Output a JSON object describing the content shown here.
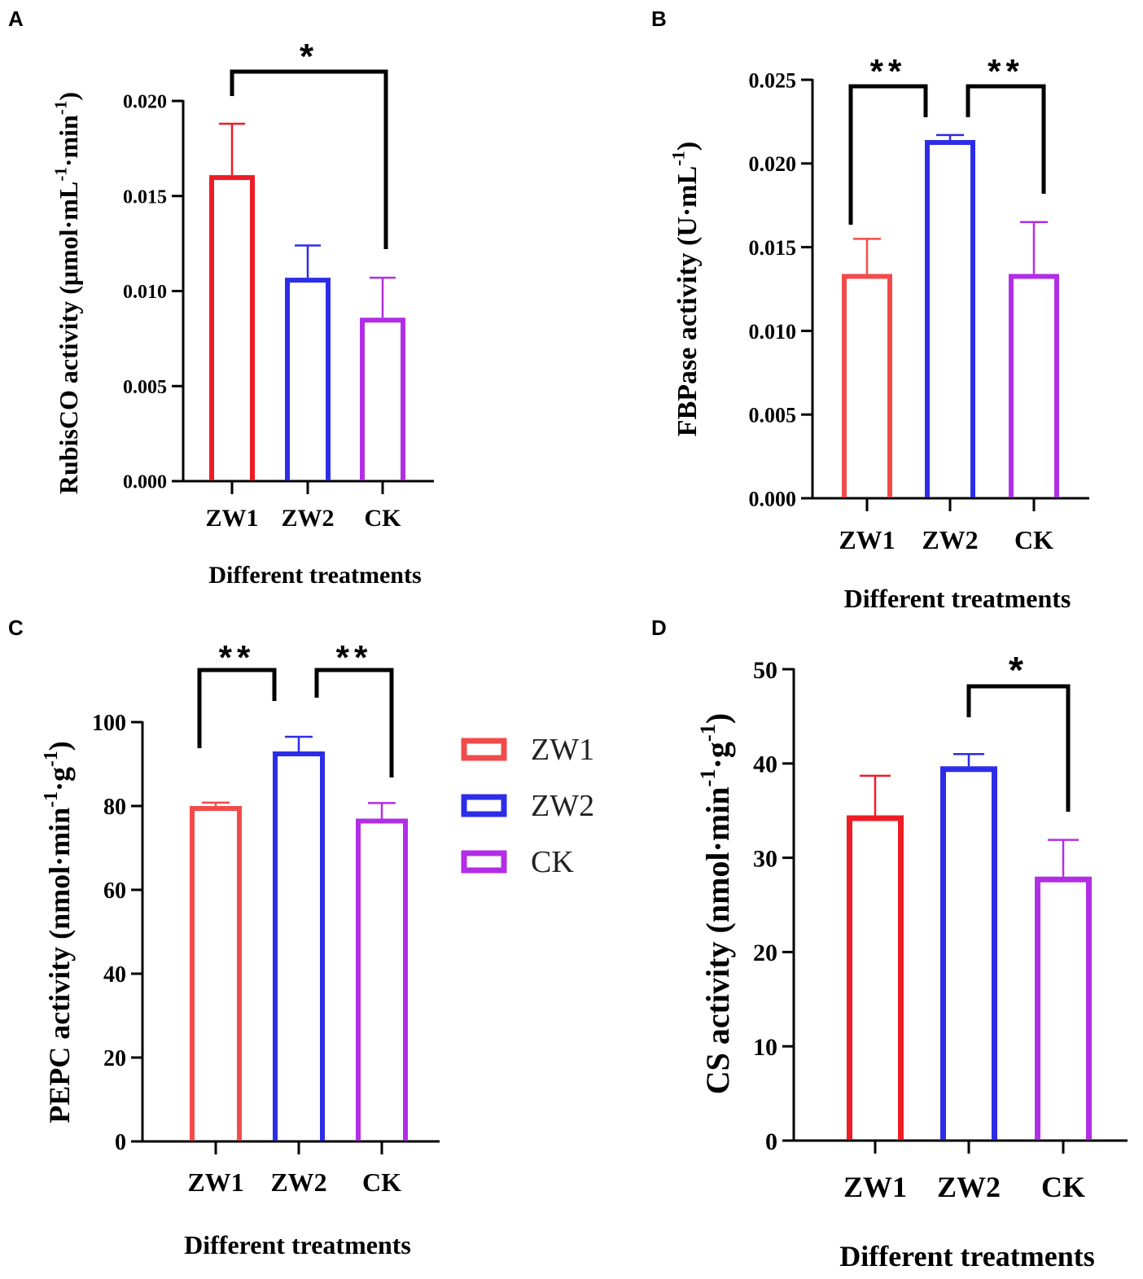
{
  "chart_data": [
    {
      "panel": "A",
      "type": "bar",
      "categories": [
        "ZW1",
        "ZW2",
        "CK"
      ],
      "values": [
        0.0161,
        0.0107,
        0.0086
      ],
      "errors": [
        0.0027,
        0.0017,
        0.0021
      ],
      "colors": [
        "#ee1c25",
        "#2d2de8",
        "#b22ee6"
      ],
      "ylim": [
        0,
        0.02
      ],
      "yticks": [
        0,
        0.005,
        0.01,
        0.015,
        0.02
      ],
      "ytick_labels": [
        "0.000",
        "0.005",
        "0.010",
        "0.015",
        "0.020"
      ],
      "ylabel": "RubisCO activity (μmol·mL",
      "ylabel_sup": "-1",
      "ylabel_mid": "·min",
      "ylabel_sup2": "-1",
      "ylabel_end": ")",
      "xlabel": "Different treatments",
      "significance": [
        {
          "from": 0,
          "to": 2,
          "label": "*"
        }
      ]
    },
    {
      "panel": "B",
      "type": "bar",
      "categories": [
        "ZW1",
        "ZW2",
        "CK"
      ],
      "values": [
        0.0134,
        0.0214,
        0.0134
      ],
      "errors": [
        0.0021,
        0.0003,
        0.0031
      ],
      "colors": [
        "#f24b4b",
        "#2d2de8",
        "#b22ee6"
      ],
      "ylim": [
        0,
        0.025
      ],
      "yticks": [
        0,
        0.005,
        0.01,
        0.015,
        0.02,
        0.025
      ],
      "ytick_labels": [
        "0.000",
        "0.005",
        "0.010",
        "0.015",
        "0.020",
        "0.025"
      ],
      "ylabel": "FBPase activity (U·mL",
      "ylabel_sup": "-1",
      "ylabel_mid": ")",
      "ylabel_sup2": "",
      "ylabel_end": "",
      "xlabel": "Different treatments",
      "significance": [
        {
          "from": 0,
          "to": 1,
          "label": "**"
        },
        {
          "from": 1,
          "to": 2,
          "label": "**"
        }
      ]
    },
    {
      "panel": "C",
      "type": "bar",
      "categories": [
        "ZW1",
        "ZW2",
        "CK"
      ],
      "values": [
        80,
        93,
        77
      ],
      "errors": [
        0.8,
        3.5,
        3.7
      ],
      "colors": [
        "#f24b4b",
        "#2d2de8",
        "#b22ee6"
      ],
      "ylim": [
        0,
        100
      ],
      "yticks": [
        0,
        20,
        40,
        60,
        80,
        100
      ],
      "ytick_labels": [
        "0",
        "20",
        "40",
        "60",
        "80",
        "100"
      ],
      "ylabel": "PEPC activity (nmol·min",
      "ylabel_sup": "-1",
      "ylabel_mid": "·g",
      "ylabel_sup2": "-1",
      "ylabel_end": ")",
      "xlabel": "Different treatments",
      "significance": [
        {
          "from": 0,
          "to": 1,
          "label": "**"
        },
        {
          "from": 1,
          "to": 2,
          "label": "**"
        }
      ],
      "legend": {
        "placement": "right",
        "entries": [
          {
            "label": "ZW1",
            "color": "#f24b4b"
          },
          {
            "label": "ZW2",
            "color": "#2d2de8"
          },
          {
            "label": "CK",
            "color": "#b22ee6"
          }
        ]
      }
    },
    {
      "panel": "D",
      "type": "bar",
      "categories": [
        "ZW1",
        "ZW2",
        "CK"
      ],
      "values": [
        34.5,
        39.7,
        28
      ],
      "errors": [
        4.2,
        1.3,
        3.9
      ],
      "colors": [
        "#ee1c25",
        "#2d2de8",
        "#b22ee6"
      ],
      "ylim": [
        0,
        50
      ],
      "yticks": [
        0,
        10,
        20,
        30,
        40,
        50
      ],
      "ytick_labels": [
        "0",
        "10",
        "20",
        "30",
        "40",
        "50"
      ],
      "ylabel": "CS activity (nmol·min",
      "ylabel_sup": "-1",
      "ylabel_mid": "·g",
      "ylabel_sup2": "-1",
      "ylabel_end": ")",
      "xlabel": "Different treatments",
      "significance": [
        {
          "from": 1,
          "to": 2,
          "label": "*"
        }
      ]
    }
  ]
}
